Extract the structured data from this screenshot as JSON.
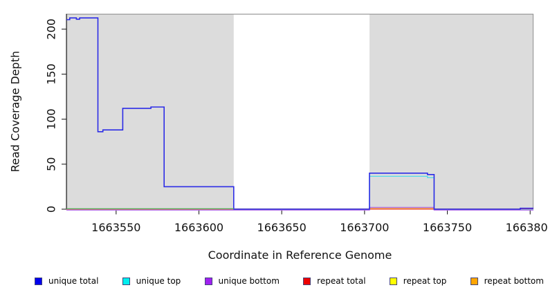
{
  "chart_data": {
    "type": "line",
    "subtype": "step",
    "title": "",
    "xlabel": "Coordinate in Reference Genome",
    "ylabel": "Read Coverage Depth",
    "xlim": [
      1663520,
      1663802
    ],
    "ylim": [
      0,
      217
    ],
    "x_ticks": [
      1663550,
      1663600,
      1663650,
      1663700,
      1663750,
      1663800
    ],
    "y_ticks": [
      0,
      50,
      100,
      150,
      200
    ],
    "grid": false,
    "legend_position": "bottom",
    "plot_background": "#ffffff",
    "box_color": "#999999",
    "shaded_regions": [
      {
        "name": "repeat region left",
        "x_start": 1663520,
        "x_end": 1663621,
        "color": "#dcdcdc"
      },
      {
        "name": "repeat region right",
        "x_start": 1663703,
        "x_end": 1663802,
        "color": "#dcdcdc"
      }
    ],
    "baseline_blend_color": "#57ad57",
    "series": [
      {
        "name": "unique total",
        "color": "#2b2be6",
        "legend_color": "#0000ee",
        "points": [
          [
            1663520,
            210.5
          ],
          [
            1663522,
            210.5
          ],
          [
            1663522,
            212.5
          ],
          [
            1663526,
            212.5
          ],
          [
            1663526,
            211
          ],
          [
            1663528,
            211
          ],
          [
            1663528,
            212.5
          ],
          [
            1663539,
            212.5
          ],
          [
            1663539,
            86
          ],
          [
            1663542,
            86
          ],
          [
            1663542,
            88
          ],
          [
            1663554,
            88
          ],
          [
            1663554,
            112
          ],
          [
            1663571,
            112
          ],
          [
            1663571,
            113.5
          ],
          [
            1663579,
            113.5
          ],
          [
            1663579,
            25
          ],
          [
            1663621,
            25
          ],
          [
            1663621,
            0
          ],
          [
            1663703,
            0
          ],
          [
            1663703,
            40
          ],
          [
            1663738,
            40
          ],
          [
            1663738,
            38.5
          ],
          [
            1663742,
            38.5
          ],
          [
            1663742,
            0
          ],
          [
            1663794,
            0
          ],
          [
            1663794,
            1
          ],
          [
            1663802,
            1
          ]
        ]
      },
      {
        "name": "unique top",
        "color": "#50dce6",
        "legend_color": "#00eeee",
        "points": [
          [
            1663520,
            0
          ],
          [
            1663703,
            0
          ],
          [
            1663703,
            36.5
          ],
          [
            1663738,
            36.5
          ],
          [
            1663738,
            35
          ],
          [
            1663742,
            35
          ],
          [
            1663742,
            0
          ],
          [
            1663802,
            0
          ]
        ]
      },
      {
        "name": "unique bottom",
        "color": "#b06ee8",
        "legend_color": "#a020f0",
        "points": [
          [
            1663520,
            0
          ],
          [
            1663703,
            0
          ],
          [
            1663703,
            3
          ],
          [
            1663742,
            3
          ],
          [
            1663742,
            0
          ],
          [
            1663802,
            0
          ]
        ]
      },
      {
        "name": "repeat total",
        "color": "#ee5555",
        "legend_color": "#ee0000",
        "points": [
          [
            1663520,
            0
          ],
          [
            1663794,
            0
          ],
          [
            1663794,
            0.5
          ],
          [
            1663802,
            0.5
          ]
        ]
      },
      {
        "name": "repeat top",
        "color": "#eeee44",
        "legend_color": "#ffff00",
        "points": [
          [
            1663520,
            0
          ],
          [
            1663802,
            0
          ]
        ]
      },
      {
        "name": "repeat bottom",
        "color": "#f59b23",
        "legend_color": "#ffa500",
        "points": [
          [
            1663520,
            0
          ],
          [
            1663703,
            0
          ],
          [
            1663703,
            0.8
          ],
          [
            1663742,
            0.8
          ],
          [
            1663742,
            0
          ],
          [
            1663802,
            0
          ]
        ]
      }
    ]
  }
}
